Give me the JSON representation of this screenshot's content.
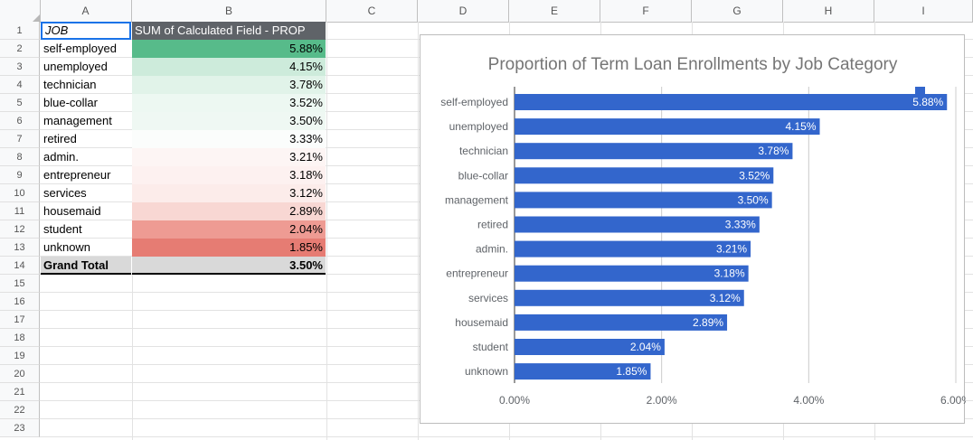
{
  "spreadsheet": {
    "columns": [
      "A",
      "B",
      "C",
      "D",
      "E",
      "F",
      "G",
      "H",
      "I"
    ],
    "rows": [
      "1",
      "2",
      "3",
      "4",
      "5",
      "6",
      "7",
      "8",
      "9",
      "10",
      "11",
      "12",
      "13",
      "14",
      "15",
      "16",
      "17",
      "18",
      "19",
      "20",
      "21",
      "22",
      "23"
    ],
    "header": {
      "job": "JOB",
      "sum": "SUM of Calculated Field - PROP"
    },
    "data": [
      {
        "job": "self-employed",
        "value": "5.88%",
        "color": "#57bb8a"
      },
      {
        "job": "unemployed",
        "value": "4.15%",
        "color": "#cdebdb"
      },
      {
        "job": "technician",
        "value": "3.78%",
        "color": "#e1f3e9"
      },
      {
        "job": "blue-collar",
        "value": "3.52%",
        "color": "#edf8f2"
      },
      {
        "job": "management",
        "value": "3.50%",
        "color": "#eff8f3"
      },
      {
        "job": "retired",
        "value": "3.33%",
        "color": "#fbfdfc"
      },
      {
        "job": "admin.",
        "value": "3.21%",
        "color": "#fdf5f4"
      },
      {
        "job": "entrepreneur",
        "value": "3.18%",
        "color": "#fdf1f0"
      },
      {
        "job": "services",
        "value": "3.12%",
        "color": "#fcecea"
      },
      {
        "job": "housemaid",
        "value": "2.89%",
        "color": "#f8d7d3"
      },
      {
        "job": "student",
        "value": "2.04%",
        "color": "#ee9b93"
      },
      {
        "job": "unknown",
        "value": "1.85%",
        "color": "#e67c73"
      }
    ],
    "total": {
      "label": "Grand Total",
      "value": "3.50%"
    }
  },
  "chart_data": {
    "type": "bar",
    "orientation": "horizontal",
    "title": "Proportion of Term Loan Enrollments by Job Category",
    "categories": [
      "self-employed",
      "unemployed",
      "technician",
      "blue-collar",
      "management",
      "retired",
      "admin.",
      "entrepreneur",
      "services",
      "housemaid",
      "student",
      "unknown"
    ],
    "values": [
      5.88,
      4.15,
      3.78,
      3.52,
      3.5,
      3.33,
      3.21,
      3.18,
      3.12,
      2.89,
      2.04,
      1.85
    ],
    "value_labels": [
      "5.88%",
      "4.15%",
      "3.78%",
      "3.52%",
      "3.50%",
      "3.33%",
      "3.21%",
      "3.18%",
      "3.12%",
      "2.89%",
      "2.04%",
      "1.85%"
    ],
    "xticks": [
      "0.00%",
      "2.00%",
      "4.00%",
      "6.00%"
    ],
    "xlim": [
      0,
      6
    ],
    "xlabel": "",
    "ylabel": "",
    "grid": true,
    "legend": "top-right",
    "bar_color": "#3366cc"
  }
}
